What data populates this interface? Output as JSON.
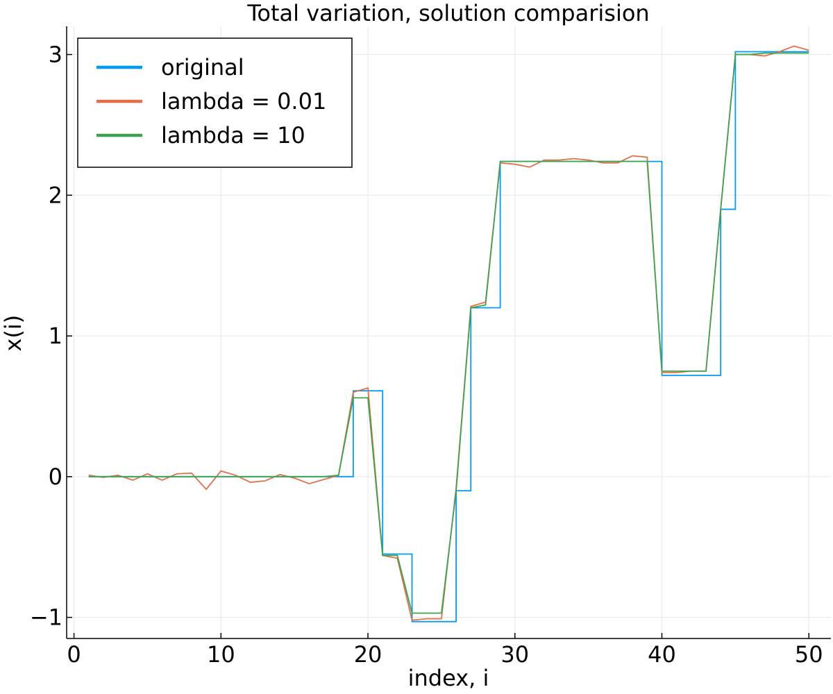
{
  "chart_data": {
    "type": "line",
    "title": "Total variation, solution comparision",
    "xlabel": "index, i",
    "ylabel": "x(i)",
    "xlim": [
      -0.5,
      51.5
    ],
    "ylim": [
      -1.15,
      3.2
    ],
    "xticks": [
      0,
      10,
      20,
      30,
      40,
      50
    ],
    "xtick_labels": [
      "0",
      "10",
      "20",
      "30",
      "40",
      "50"
    ],
    "yticks": [
      -1,
      0,
      1,
      2,
      3
    ],
    "ytick_labels": [
      "−1",
      "0",
      "1",
      "2",
      "3"
    ],
    "grid": true,
    "legend_position": "top-left",
    "x": [
      1,
      2,
      3,
      4,
      5,
      6,
      7,
      8,
      9,
      10,
      11,
      12,
      13,
      14,
      15,
      16,
      17,
      18,
      19,
      20,
      21,
      22,
      23,
      24,
      25,
      26,
      27,
      28,
      29,
      30,
      31,
      32,
      33,
      34,
      35,
      36,
      37,
      38,
      39,
      40,
      41,
      42,
      43,
      44,
      45,
      46,
      47,
      48,
      49,
      50
    ],
    "series": [
      {
        "name": "original",
        "color": "#009af9",
        "step": true,
        "values": [
          0,
          0,
          0,
          0,
          0,
          0,
          0,
          0,
          0,
          0,
          0,
          0,
          0,
          0,
          0,
          0,
          0,
          0,
          0.61,
          0.61,
          -0.55,
          -0.55,
          -1.03,
          -1.03,
          -1.03,
          -0.1,
          1.2,
          1.2,
          2.24,
          2.24,
          2.24,
          2.24,
          2.24,
          2.24,
          2.24,
          2.24,
          2.24,
          2.24,
          2.24,
          0.72,
          0.72,
          0.72,
          0.72,
          1.9,
          3.02,
          3.02,
          3.02,
          3.02,
          3.02,
          3.02
        ]
      },
      {
        "name": "lambda = 0.01",
        "color": "#e26f46",
        "step": false,
        "values": [
          0.01,
          -0.005,
          0.01,
          -0.025,
          0.02,
          -0.025,
          0.02,
          0.025,
          -0.09,
          0.04,
          0.01,
          -0.04,
          -0.03,
          0.015,
          -0.01,
          -0.05,
          -0.02,
          0.01,
          0.6,
          0.63,
          -0.56,
          -0.58,
          -1.02,
          -1.01,
          -1.01,
          -0.08,
          1.21,
          1.24,
          2.23,
          2.22,
          2.2,
          2.25,
          2.25,
          2.26,
          2.25,
          2.23,
          2.23,
          2.28,
          2.27,
          0.74,
          0.74,
          0.75,
          0.75,
          1.9,
          3.0,
          3.0,
          2.99,
          3.02,
          3.06,
          3.03
        ]
      },
      {
        "name": "lambda = 10",
        "color": "#3da44d",
        "step": false,
        "values": [
          0,
          0,
          0,
          0,
          0,
          0,
          0,
          0,
          0,
          0,
          0,
          0,
          0,
          0,
          0,
          0,
          0,
          0.01,
          0.56,
          0.56,
          -0.56,
          -0.56,
          -0.97,
          -0.97,
          -0.97,
          -0.1,
          1.2,
          1.22,
          2.24,
          2.24,
          2.24,
          2.24,
          2.24,
          2.24,
          2.24,
          2.24,
          2.24,
          2.24,
          2.24,
          0.75,
          0.75,
          0.75,
          0.75,
          1.9,
          3.0,
          3.0,
          3.01,
          3.01,
          3.01,
          3.01
        ]
      }
    ]
  }
}
